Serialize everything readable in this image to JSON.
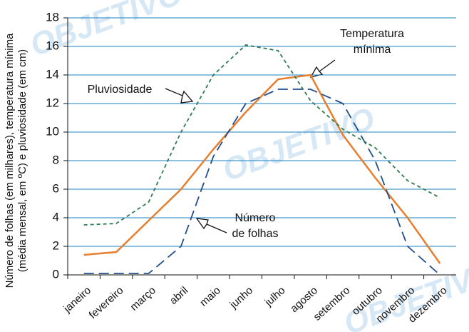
{
  "chart_data": {
    "type": "line",
    "y_label_lines": [
      "Número de folhas (em milhares), temperatura mínima",
      "(média mensal, em ºC) e pluviosidade (em cm)"
    ],
    "categories": [
      "janeiro",
      "fevereiro",
      "março",
      "abril",
      "maio",
      "junho",
      "julho",
      "agosto",
      "setembro",
      "outubro",
      "novembro",
      "dezembro"
    ],
    "series": [
      {
        "color": "#e67e2e",
        "dash": "solid",
        "values": [
          1.4,
          1.6,
          3.8,
          6,
          8.8,
          11.4,
          13.7,
          14,
          9.8,
          6.8,
          4,
          0.8
        ]
      },
      {
        "color": "#1f4e8c",
        "dash": "long",
        "values": [
          0.1,
          0.1,
          0.1,
          2,
          8.3,
          12,
          13,
          13,
          12,
          8,
          2,
          0
        ]
      },
      {
        "color": "#2e7d4f",
        "dash": "short",
        "values": [
          3.5,
          3.6,
          5.1,
          10,
          14,
          16.1,
          15.7,
          12.2,
          10.2,
          8.9,
          6.6,
          5.4
        ]
      }
    ],
    "annotations": [
      {
        "lines": [
          "Temperatura",
          "mínima"
        ]
      },
      {
        "lines": [
          "Pluviosidade"
        ]
      },
      {
        "lines": [
          "Número",
          "de folhas"
        ]
      }
    ],
    "watermark": "OBJETIVO",
    "ylim": [
      0,
      18
    ],
    "yticks": [
      0,
      2,
      4,
      6,
      8,
      10,
      12,
      14,
      16,
      18
    ],
    "grid": true
  }
}
